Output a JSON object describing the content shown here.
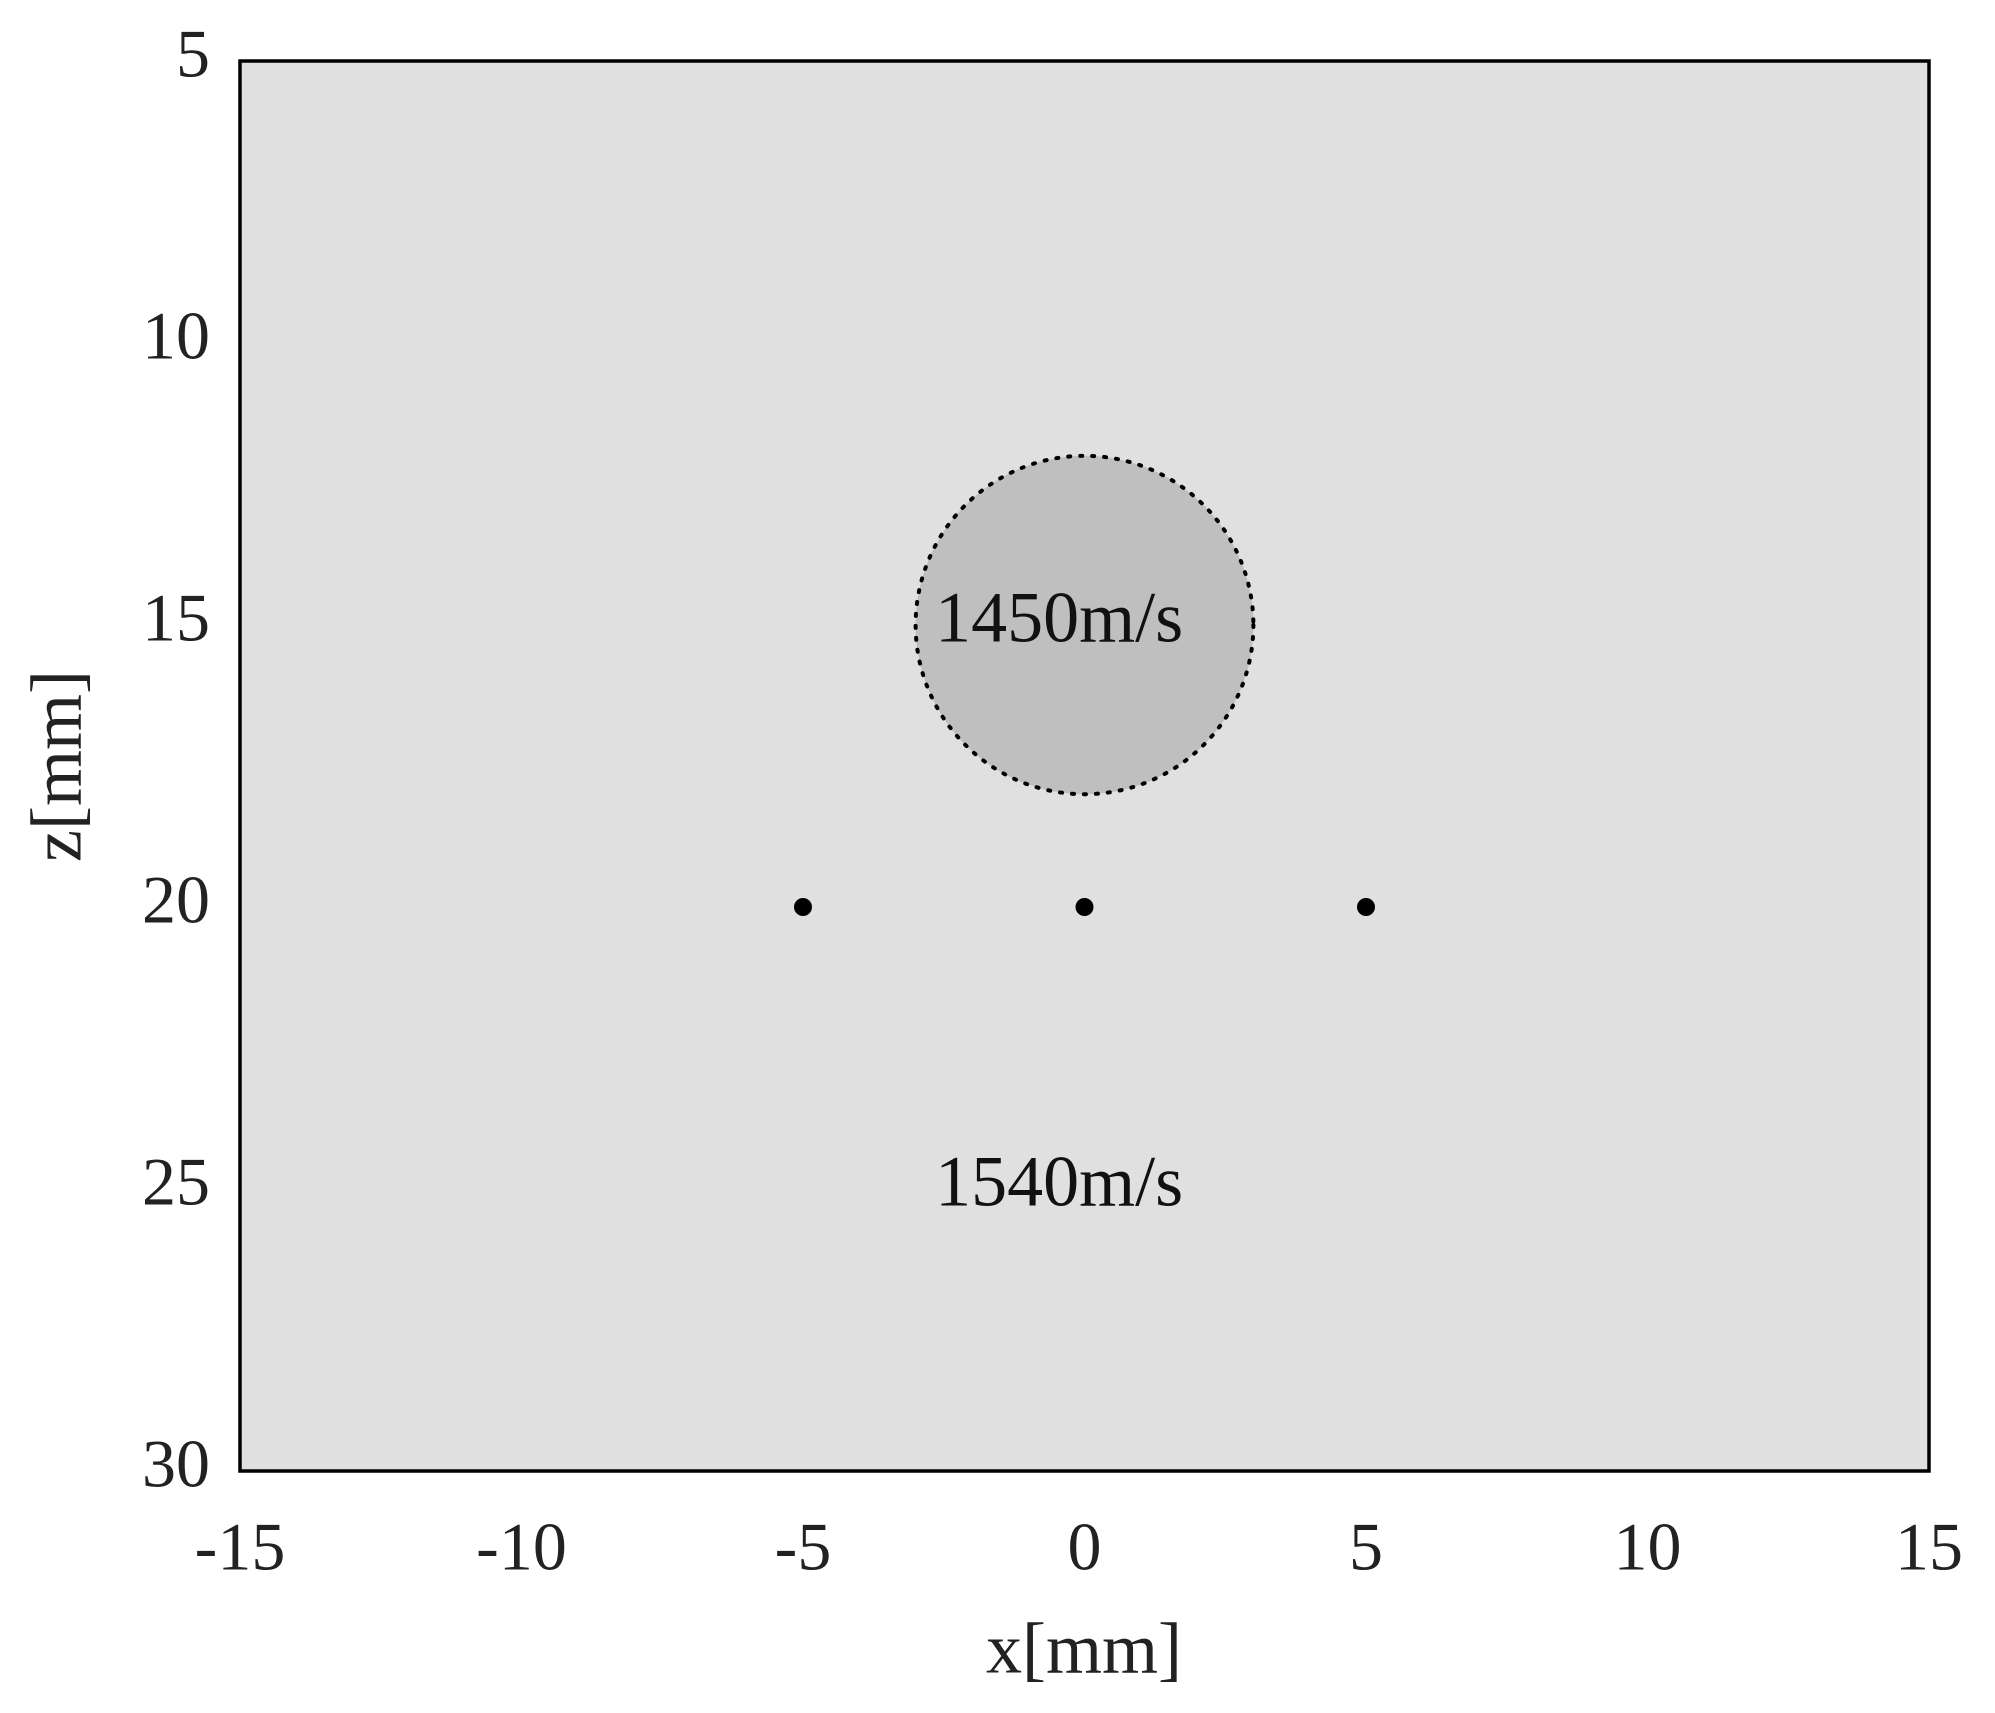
{
  "chart_data": {
    "type": "scatter",
    "x": [
      -5,
      0,
      5
    ],
    "values": [
      20,
      20,
      20
    ],
    "point_color": "#000000",
    "background_color": "#e0e0e0",
    "region": {
      "center_x": 0,
      "center_z": 15,
      "radius": 3,
      "color": "#bfbfbf"
    },
    "annotations": [
      {
        "text": "1450m/s",
        "x": -0.45,
        "y": 15
      },
      {
        "text": "1540m/s",
        "x": -0.45,
        "y": 25
      }
    ],
    "x_label": "x[mm]",
    "y_label": "z[mm]",
    "xlim": [
      -15,
      15
    ],
    "xticks": [
      -15,
      -10,
      -5,
      0,
      5,
      10,
      15
    ],
    "ylim": [
      30,
      5
    ],
    "yticks": [
      5,
      10,
      15,
      20,
      25,
      30
    ]
  }
}
